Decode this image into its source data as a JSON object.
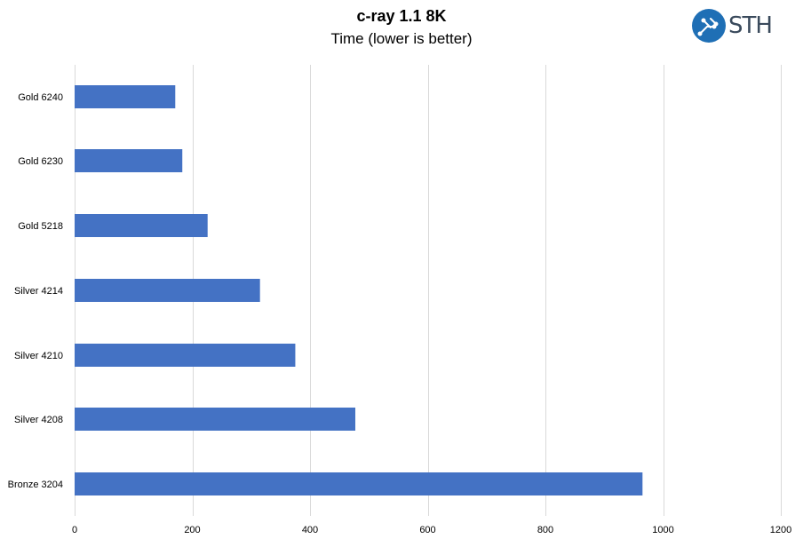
{
  "chart_data": {
    "type": "bar",
    "orientation": "horizontal",
    "title": "c-ray 1.1 8K",
    "subtitle": "Time (lower is better)",
    "categories": [
      "Gold 6240",
      "Gold 6230",
      "Gold 5218",
      "Silver 4214",
      "Silver 4210",
      "Silver 4208",
      "Bronze 3204"
    ],
    "values": [
      171,
      183,
      226,
      315,
      375,
      477,
      965
    ],
    "xlim": [
      0,
      1200
    ],
    "xticks": [
      0,
      200,
      400,
      600,
      800,
      1000,
      1200
    ],
    "grid": true,
    "bar_color": "#4472c4"
  },
  "logo": {
    "text": "STH",
    "color": "#1f6fb5"
  }
}
